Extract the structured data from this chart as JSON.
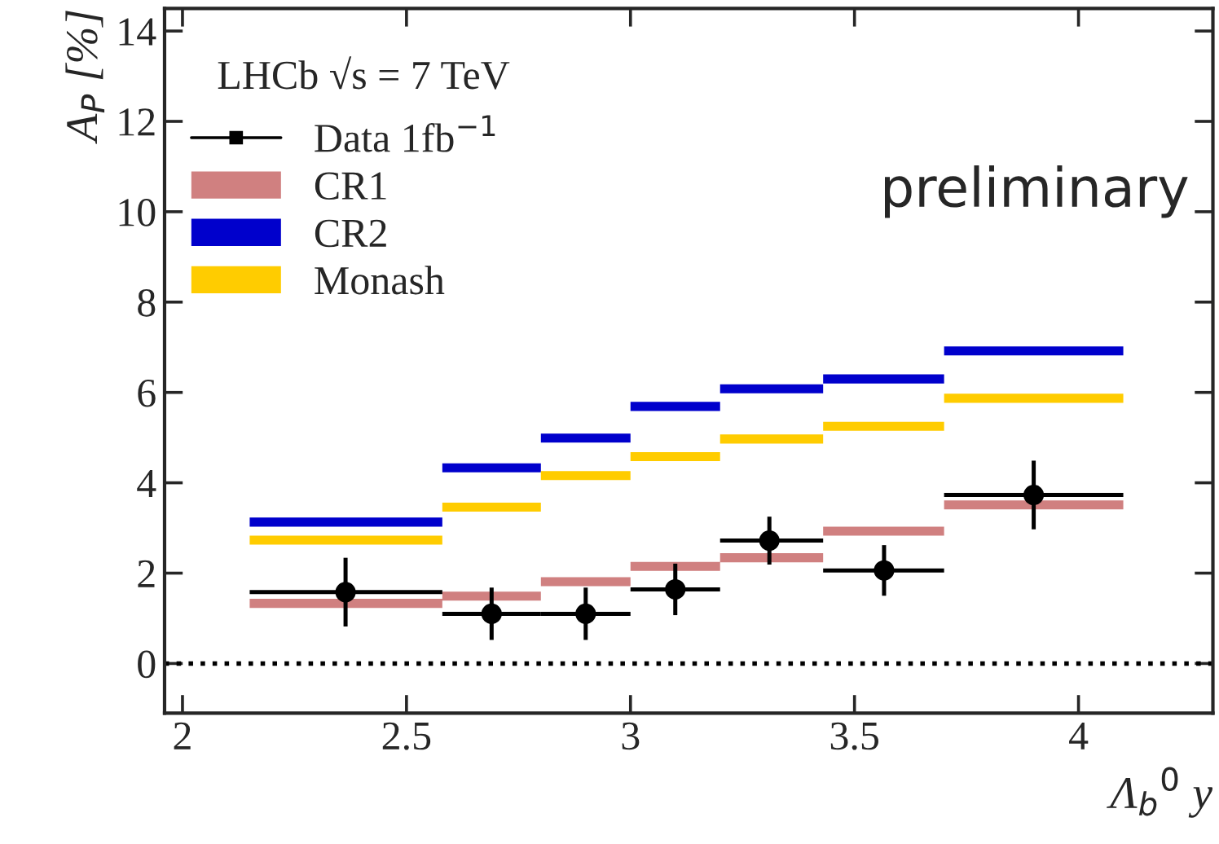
{
  "chart_data": {
    "type": "scatter",
    "xlabel": "Λ$_{b}$$^{0}$ y",
    "ylabel": "A$_{P}$ [%]",
    "xlim": [
      1.96,
      4.3
    ],
    "xticks": [
      2,
      2.5,
      3,
      3.5,
      4
    ],
    "ylim": [
      -1.1,
      14.5
    ],
    "yticks": [
      0,
      2,
      4,
      6,
      8,
      10,
      12,
      14
    ],
    "grid": false,
    "legend": "top left",
    "marker": "circle",
    "annotations": [
      "LHCb √s = 7 TeV",
      "preliminary"
    ],
    "ref_lines": [
      {
        "axis": "y",
        "value": 0,
        "line_style": "dotted",
        "color": "#000000"
      }
    ],
    "series": [
      {
        "name": "Data 1fb$^{−1}$",
        "color": "#000000",
        "x": [
          2.364,
          2.69,
          2.9,
          3.1,
          3.31,
          3.566,
          3.9
        ],
        "values": [
          1.58,
          1.1,
          1.1,
          1.64,
          2.72,
          2.06,
          3.73
        ],
        "errors": [
          0.76,
          0.58,
          0.58,
          0.57,
          0.53,
          0.56,
          0.76
        ],
        "xerrors": [
          [
            2.15,
            2.58
          ],
          [
            2.58,
            2.8
          ],
          [
            2.8,
            3.0
          ],
          [
            3.0,
            3.2
          ],
          [
            3.2,
            3.43
          ],
          [
            3.43,
            3.7
          ],
          [
            3.7,
            4.1
          ]
        ]
      },
      {
        "name": "CR1",
        "type": "step",
        "color": "#d08080",
        "x": [
          2.15,
          2.58,
          2.8,
          3.0,
          3.2,
          3.43,
          3.7,
          4.1
        ],
        "marker": "none",
        "values": [
          1.33,
          1.49,
          1.81,
          2.15,
          2.34,
          2.93,
          3.51,
          3.51
        ]
      },
      {
        "name": "CR2",
        "type": "step",
        "color": "#0000cc",
        "x": [
          2.15,
          2.58,
          2.8,
          3.0,
          3.2,
          3.43,
          3.7,
          4.1
        ],
        "marker": "none",
        "values": [
          3.13,
          4.33,
          4.99,
          5.69,
          6.08,
          6.3,
          6.92,
          6.92
        ]
      },
      {
        "name": "Monash",
        "type": "step",
        "color": "#ffcc00",
        "x": [
          2.15,
          2.58,
          2.8,
          3.0,
          3.2,
          3.43,
          3.7,
          4.1
        ],
        "marker": "none",
        "values": [
          2.73,
          3.46,
          4.16,
          4.58,
          4.97,
          5.25,
          5.87,
          5.87
        ]
      }
    ]
  }
}
